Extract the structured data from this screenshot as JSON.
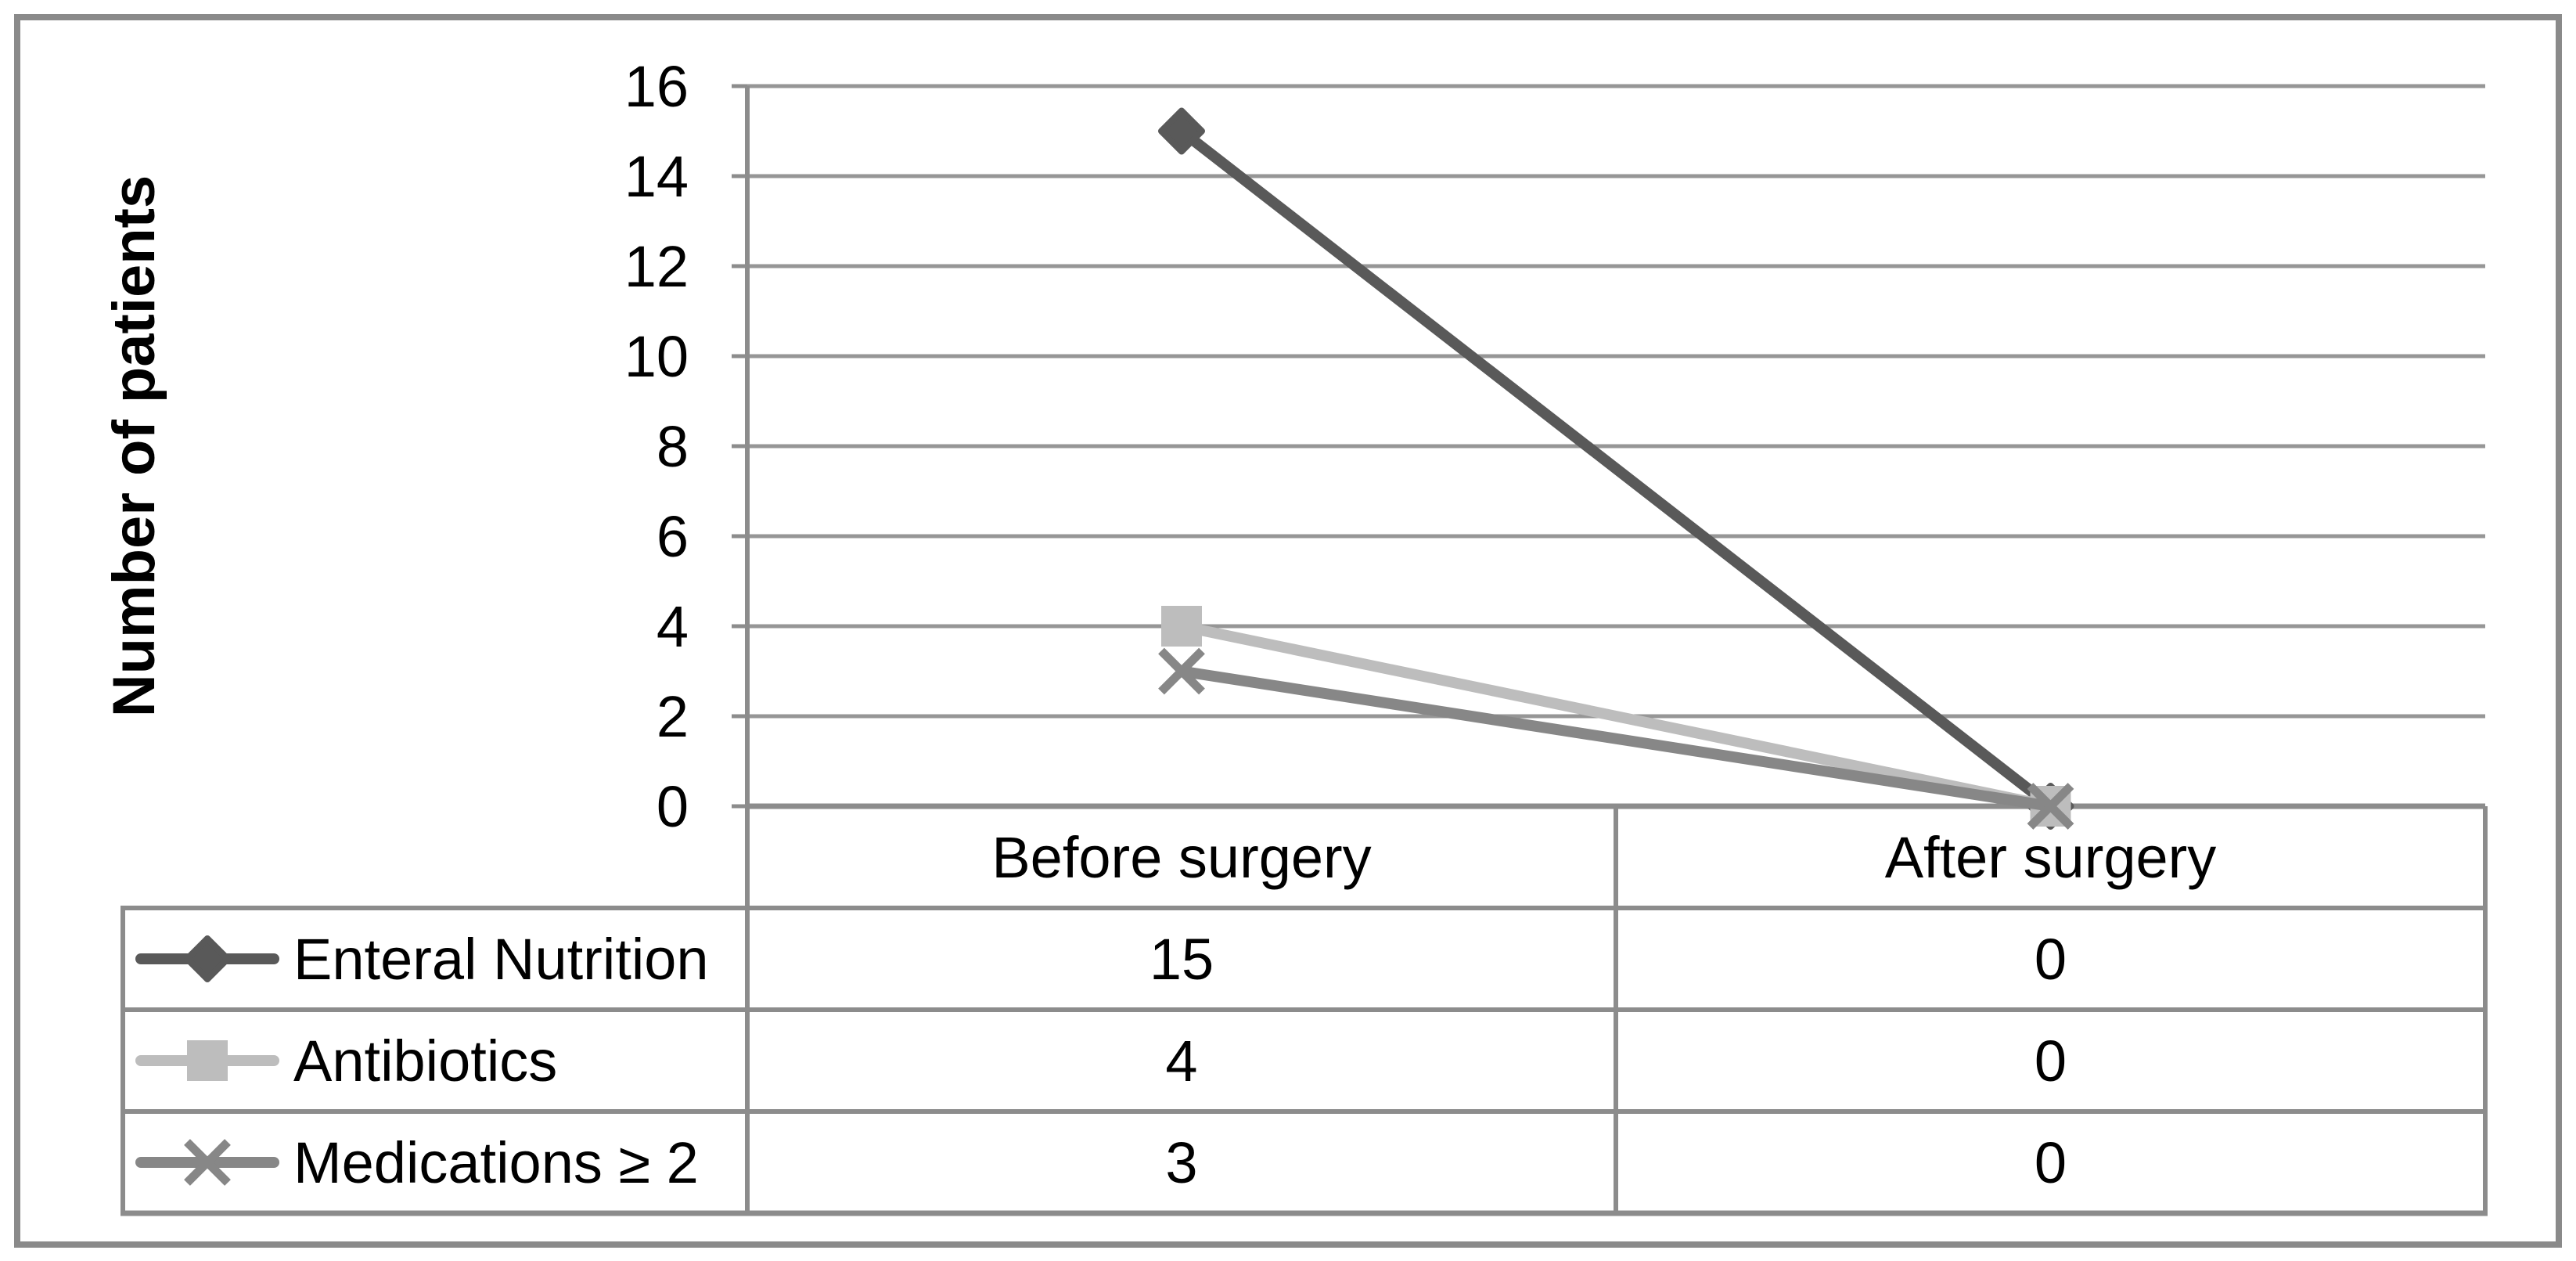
{
  "figure": {
    "background": "#ffffff",
    "outer_border_color": "#8a8a8a"
  },
  "chart_data": {
    "type": "line",
    "title": "",
    "xlabel": "",
    "ylabel": "Number of patients",
    "categories": [
      "Before surgery",
      "After surgery"
    ],
    "series": [
      {
        "name": "Enteral Nutrition",
        "values": [
          15,
          0
        ],
        "marker": "diamond",
        "color": "#595959"
      },
      {
        "name": "Antibiotics",
        "values": [
          4,
          0
        ],
        "marker": "square",
        "color": "#bdbdbd"
      },
      {
        "name": "Medications ≥ 2",
        "values": [
          3,
          0
        ],
        "marker": "x",
        "color": "#878787"
      }
    ],
    "ylim": [
      0,
      16
    ],
    "yticks": [
      0,
      2,
      4,
      6,
      8,
      10,
      12,
      14,
      16
    ],
    "grid": true,
    "legend_position": "data-table-left-column",
    "gridline_color": "#969696",
    "axis_border_color": "#8c8c8c",
    "text_color": "#000000"
  }
}
